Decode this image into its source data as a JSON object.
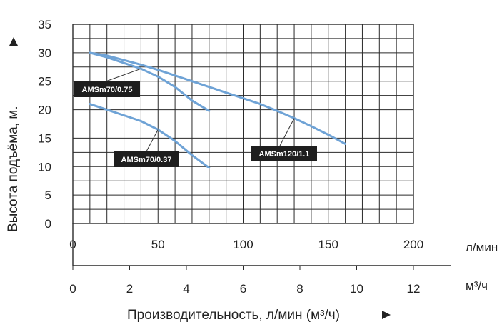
{
  "chart_data": {
    "type": "line",
    "ylabel": "Высота подъёма, м.",
    "xlabel": "Производительность, л/мин (м³/ч)",
    "ylim": [
      0,
      35
    ],
    "xlim": [
      0,
      200
    ],
    "y_ticks": [
      "0",
      "5",
      "10",
      "15",
      "20",
      "25",
      "30",
      "35"
    ],
    "x_ticks_lmin": [
      "0",
      "50",
      "100",
      "150",
      "200"
    ],
    "x_ticks_m3h": [
      "0",
      "2",
      "4",
      "6",
      "8",
      "10",
      "12"
    ],
    "x_unit_lmin": "л/мин",
    "x_unit_m3h": "м³/ч",
    "grid": true,
    "line_color": "#6fa3d6",
    "label_bg": "#1e1e1e",
    "series": [
      {
        "name": "AMSm70/0.75",
        "x": [
          10,
          20,
          30,
          40,
          50,
          60,
          70,
          80
        ],
        "y": [
          30,
          29.2,
          28.2,
          27.2,
          25.8,
          24,
          21.6,
          19.8
        ]
      },
      {
        "name": "AMSm70/0.37",
        "x": [
          10,
          20,
          30,
          40,
          50,
          60,
          70,
          80
        ],
        "y": [
          21,
          20,
          19,
          18,
          16.5,
          14.5,
          12,
          9.8
        ]
      },
      {
        "name": "AMSm120/1.1",
        "x": [
          10,
          20,
          30,
          40,
          50,
          60,
          70,
          80,
          90,
          100,
          110,
          120,
          130,
          140,
          150,
          160
        ],
        "y": [
          30,
          29.5,
          28.7,
          27.9,
          27,
          26,
          25,
          24,
          23,
          22,
          21,
          19.8,
          18.5,
          17.1,
          15.6,
          14
        ]
      }
    ]
  }
}
